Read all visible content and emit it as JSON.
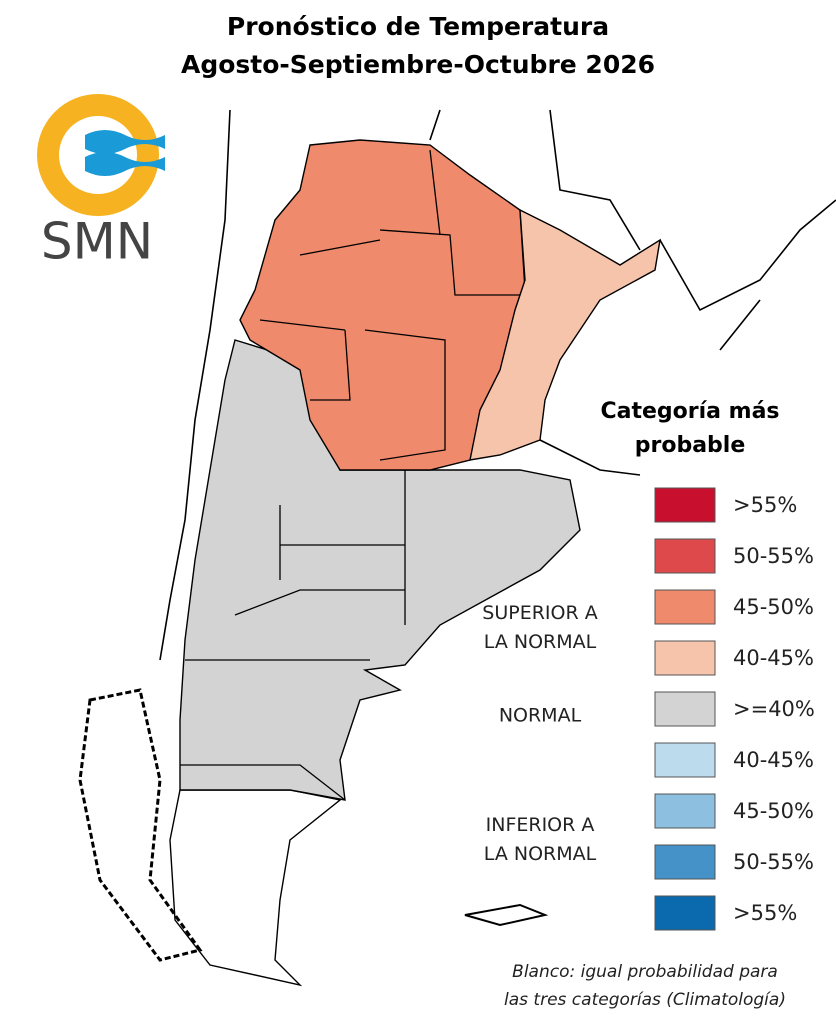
{
  "title": [
    "Pronóstico de Temperatura",
    "Agosto-Septiembre-Octubre 2026"
  ],
  "logo": {
    "text": "SMN"
  },
  "legend": {
    "title": [
      "Categoría más",
      "probable"
    ],
    "items": [
      {
        "label": ">55%",
        "color": "#c8102e"
      },
      {
        "label": "50-55%",
        "color": "#de4a4c"
      },
      {
        "label": "45-50%",
        "color": "#ef8a6c"
      },
      {
        "label": "40-45%",
        "color": "#f6c4aa"
      },
      {
        "label": ">=40%",
        "color": "#d3d3d3"
      },
      {
        "label": "40-45%",
        "color": "#bcdcee"
      },
      {
        "label": "45-50%",
        "color": "#8dbfe0"
      },
      {
        "label": "50-55%",
        "color": "#4592c8"
      },
      {
        "label": ">55%",
        "color": "#0b6aad"
      }
    ],
    "groups": [
      [
        "SUPERIOR A",
        "LA NORMAL"
      ],
      [
        "NORMAL"
      ],
      [
        "INFERIOR A",
        "LA NORMAL"
      ]
    ]
  },
  "footnote": [
    "Blanco: igual probabilidad para",
    "las tres categorías (Climatología)"
  ]
}
